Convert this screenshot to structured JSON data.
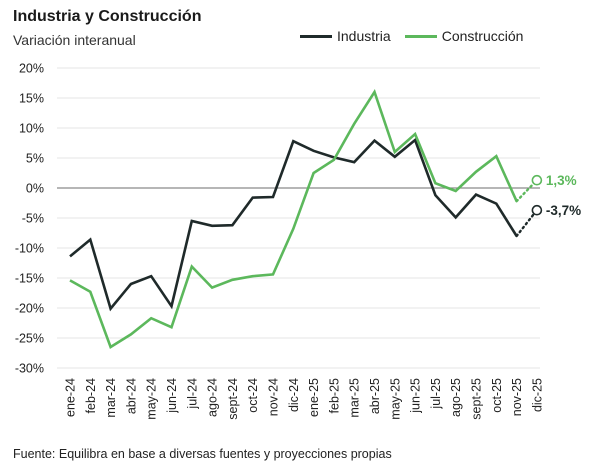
{
  "header": {
    "title": "Industria y Construcción",
    "subtitle": "Variación interanual"
  },
  "footer": {
    "source": "Fuente: Equilibra en base a diversas fuentes y proyecciones propias"
  },
  "colors": {
    "industria": "#1f2a2a",
    "construccion": "#5cb85c",
    "grid": "#e6e6e6",
    "zero": "#8a8a8a"
  },
  "chart_data": {
    "type": "line",
    "title": "Industria y Construcción",
    "subtitle": "Variación interanual",
    "categories": [
      "ene-24",
      "feb-24",
      "mar-24",
      "abr-24",
      "may-24",
      "jun-24",
      "jul-24",
      "ago-24",
      "sept-24",
      "oct-24",
      "nov-24",
      "dic-24",
      "ene-25",
      "feb-25",
      "mar-25",
      "abr-25",
      "may-25",
      "jun-25",
      "jul-25",
      "ago-25",
      "sept-25",
      "oct-25",
      "nov-25",
      "dic-25"
    ],
    "yticks": [
      "20%",
      "15%",
      "10%",
      "5%",
      "0%",
      "-5%",
      "-10%",
      "-15%",
      "-20%",
      "-25%",
      "-30%"
    ],
    "ylim": [
      -30,
      20
    ],
    "grid": true,
    "legend": "top-right",
    "series": [
      {
        "name": "Industria",
        "values": [
          -11.4,
          -8.6,
          -20.1,
          -16.0,
          -14.7,
          -19.7,
          -5.5,
          -6.3,
          -6.2,
          -1.6,
          -1.5,
          7.8,
          6.2,
          5.1,
          4.3,
          7.9,
          5.2,
          8.0,
          -1.2,
          -4.9,
          -1.1,
          -2.6,
          -8.0,
          null
        ],
        "projection": {
          "from": -8.0,
          "to": -3.7
        },
        "end_label": "-3,7%"
      },
      {
        "name": "Construcción",
        "values": [
          -15.4,
          -17.3,
          -26.5,
          -24.4,
          -21.7,
          -23.2,
          -13.1,
          -16.6,
          -15.3,
          -14.7,
          -14.4,
          -6.8,
          2.5,
          4.7,
          10.7,
          16.0,
          6.0,
          9.0,
          0.8,
          -0.5,
          2.7,
          5.3,
          -2.2,
          null
        ],
        "projection": {
          "from": -2.2,
          "to": 1.3
        },
        "end_label": "1,3%"
      }
    ]
  }
}
